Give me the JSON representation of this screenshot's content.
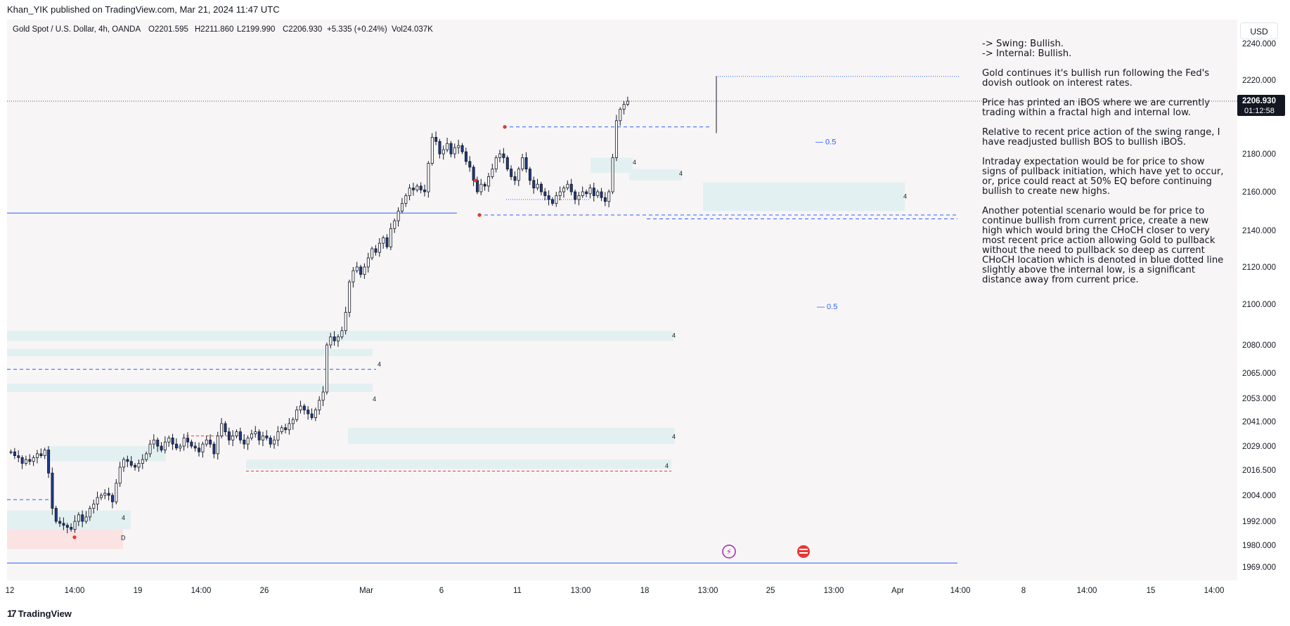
{
  "header": {
    "published": "Khan_YIK published on TradingView.com, Mar 21, 2024 11:47 UTC"
  },
  "legend": {
    "symbol": "Gold Spot / U.S. Dollar, 4h, OANDA",
    "open": "O2201.595",
    "high": "H2211.860",
    "low": "L2199.990",
    "close": "C2206.930",
    "change": "+5.335 (+0.24%)",
    "volume": "Vol24.037K"
  },
  "currency_label": "USD",
  "price_tag": {
    "price": "2206.930",
    "countdown": "01:12:58"
  },
  "notes": [
    "-> Swing:  Bullish.",
    "-> Internal:  Bullish.",
    "Gold continues it's bullish run following the Fed's dovish outlook on interest rates.",
    "Price has printed an iBOS where we are currently trading within a fractal high and internal low.",
    "Relative to recent price action of the swing range, I have readjusted bullish BOS to bullish iBOS.",
    "Intraday expectation would be for price to show signs of pullback initiation, which have yet to occur, or, price could react at 50% EQ before continuing bullish to create new highs.",
    "Another potential scenario would be for price to continue bullish from current price, create a new high which would bring the CHoCH closer to very most recent price action allowing Gold to pullback without the need to pullback so deep as current CHoCH location which is denoted in blue dotted line slightly above the internal low, is a significant distance away from current price."
  ],
  "footer": {
    "brand": "TradingView"
  },
  "chart_data": {
    "type": "candlestick",
    "timeframe": "4h",
    "y_ticks": [
      "2240.000",
      "2220.000",
      "2200.000",
      "2180.000",
      "2160.000",
      "2140.000",
      "2120.000",
      "2100.000",
      "2080.000",
      "2065.000",
      "2053.000",
      "2041.000",
      "2029.000",
      "2016.500",
      "2004.000",
      "1992.000",
      "1980.000",
      "1969.000"
    ],
    "x_ticks": [
      "12",
      "14:00",
      "19",
      "14:00",
      "26",
      "Mar",
      "6",
      "11",
      "13:00",
      "18",
      "13:00",
      "25",
      "13:00",
      "Apr",
      "14:00",
      "8",
      "14:00",
      "15",
      "14:00"
    ],
    "zone_labels": [
      "4",
      "4",
      "4",
      "4",
      "4",
      "4",
      "4",
      "4",
      "4",
      "D"
    ],
    "eq_labels": [
      "0.5",
      "0.5"
    ],
    "last_price": 2206.93,
    "close_series": [
      2026,
      2024,
      2023,
      2020,
      2022,
      2021,
      2023,
      2025,
      2024,
      2027,
      2015,
      1998,
      1992,
      1991,
      1990,
      1989,
      1988,
      1992,
      1995,
      1992,
      1994,
      1998,
      2000,
      2003,
      2004,
      2005,
      2004,
      2001,
      2010,
      2018,
      2022,
      2021,
      2019,
      2018,
      2020,
      2022,
      2025,
      2030,
      2032,
      2029,
      2027,
      2031,
      2033,
      2030,
      2028,
      2029,
      2033,
      2031,
      2029,
      2028,
      2026,
      2030,
      2032,
      2030,
      2025,
      2034,
      2040,
      2036,
      2032,
      2034,
      2036,
      2032,
      2030,
      2033,
      2035,
      2036,
      2032,
      2034,
      2033,
      2030,
      2032,
      2036,
      2038,
      2037,
      2040,
      2042,
      2047,
      2049,
      2047,
      2045,
      2043,
      2047,
      2052,
      2056,
      2080,
      2084,
      2082,
      2084,
      2087,
      2096,
      2112,
      2118,
      2120,
      2116,
      2120,
      2125,
      2130,
      2128,
      2133,
      2136,
      2131,
      2141,
      2145,
      2150,
      2154,
      2158,
      2162,
      2161,
      2163,
      2161,
      2160,
      2175,
      2188,
      2186,
      2180,
      2182,
      2185,
      2180,
      2183,
      2184,
      2181,
      2176,
      2173,
      2166,
      2160,
      2164,
      2163,
      2168,
      2172,
      2178,
      2180,
      2178,
      2172,
      2168,
      2166,
      2172,
      2178,
      2172,
      2166,
      2162,
      2164,
      2160,
      2158,
      2156,
      2154,
      2158,
      2160,
      2162,
      2164,
      2160,
      2156,
      2158,
      2160,
      2159,
      2162,
      2158,
      2160,
      2157,
      2155,
      2160,
      2178,
      2196,
      2202,
      2205,
      2206.93
    ]
  }
}
